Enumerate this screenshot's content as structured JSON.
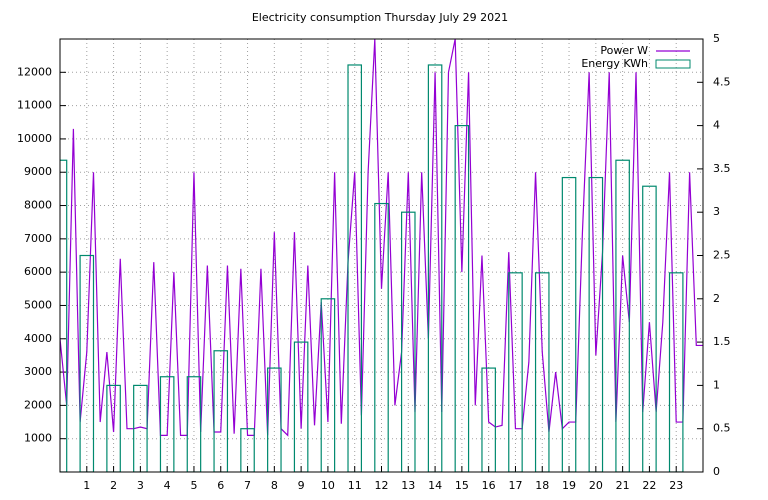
{
  "chart_data": {
    "type": "line",
    "title": "Electricity consumption Thursday July 29 2021",
    "xlim": [
      0,
      24
    ],
    "xticks": [
      1,
      2,
      3,
      4,
      5,
      6,
      7,
      8,
      9,
      10,
      11,
      12,
      13,
      14,
      15,
      16,
      17,
      18,
      19,
      20,
      21,
      22,
      23
    ],
    "ylim": [
      0,
      13000
    ],
    "yticks": [
      1000,
      2000,
      3000,
      4000,
      5000,
      6000,
      7000,
      8000,
      9000,
      10000,
      11000,
      12000
    ],
    "y2lim": [
      0,
      5
    ],
    "y2ticks": [
      0,
      0.5,
      1,
      1.5,
      2,
      2.5,
      3,
      3.5,
      4,
      4.5,
      5
    ],
    "grid": true,
    "legend": "top-right",
    "series": [
      {
        "name": "Power W",
        "color": "#9400d3",
        "style": "line",
        "x": [
          0,
          0.25,
          0.5,
          0.75,
          1,
          1.25,
          1.5,
          1.75,
          2,
          2.25,
          2.5,
          2.75,
          3,
          3.25,
          3.5,
          3.75,
          4,
          4.25,
          4.5,
          4.75,
          5,
          5.25,
          5.5,
          5.75,
          6,
          6.25,
          6.5,
          6.75,
          7,
          7.25,
          7.5,
          7.75,
          8,
          8.25,
          8.5,
          8.75,
          9,
          9.25,
          9.5,
          9.75,
          10,
          10.25,
          10.5,
          10.75,
          11,
          11.25,
          11.5,
          11.75,
          12,
          12.25,
          12.5,
          12.75,
          13,
          13.25,
          13.5,
          13.75,
          14,
          14.25,
          14.5,
          14.75,
          15,
          15.25,
          15.5,
          15.75,
          16,
          16.25,
          16.5,
          16.75,
          17,
          17.25,
          17.5,
          17.75,
          18,
          18.25,
          18.5,
          18.75,
          19,
          19.25,
          19.5,
          19.75,
          20,
          20.25,
          20.5,
          20.75,
          21,
          21.25,
          21.5,
          21.75,
          22,
          22.25,
          22.5,
          22.75,
          23,
          23.25,
          23.5,
          23.75,
          24
        ],
        "values": [
          4000,
          2000,
          10300,
          1500,
          3600,
          9000,
          1500,
          3600,
          1200,
          6400,
          1300,
          1300,
          1350,
          1300,
          6300,
          1100,
          1100,
          6000,
          1100,
          1100,
          9000,
          1200,
          6200,
          1200,
          1200,
          6200,
          1150,
          6100,
          1100,
          1100,
          6100,
          1100,
          7200,
          1300,
          1100,
          7200,
          1300,
          6200,
          1400,
          5100,
          1500,
          9000,
          1450,
          6300,
          9000,
          1700,
          9000,
          13000,
          5500,
          9000,
          2000,
          3600,
          9000,
          1800,
          9000,
          4000,
          12000,
          1800,
          12000,
          13000,
          6000,
          12000,
          2000,
          6500,
          1500,
          1350,
          1400,
          6600,
          1300,
          1300,
          3300,
          9000,
          3600,
          1200,
          3000,
          1300,
          1500,
          1500,
          7200,
          12000,
          3500,
          6600,
          12000,
          1500,
          6500,
          4500,
          12000,
          1800,
          4500,
          1800,
          4500,
          9000,
          1500,
          1500,
          9000,
          3800,
          3800
        ]
      },
      {
        "name": "Energy KWh",
        "color": "#00896e",
        "style": "boxes",
        "axis": "y2",
        "x": [
          0,
          1,
          2,
          3,
          4,
          5,
          6,
          7,
          8,
          9,
          10,
          11,
          12,
          13,
          14,
          15,
          16,
          17,
          18,
          19,
          20,
          21,
          22,
          23
        ],
        "values": [
          3.6,
          2.5,
          1.0,
          1.0,
          1.1,
          1.1,
          1.4,
          0.5,
          1.2,
          1.5,
          2.0,
          4.7,
          3.1,
          3.0,
          4.7,
          4.0,
          1.2,
          2.3,
          2.3,
          3.4,
          3.4,
          3.6,
          3.3,
          2.3
        ]
      }
    ]
  }
}
